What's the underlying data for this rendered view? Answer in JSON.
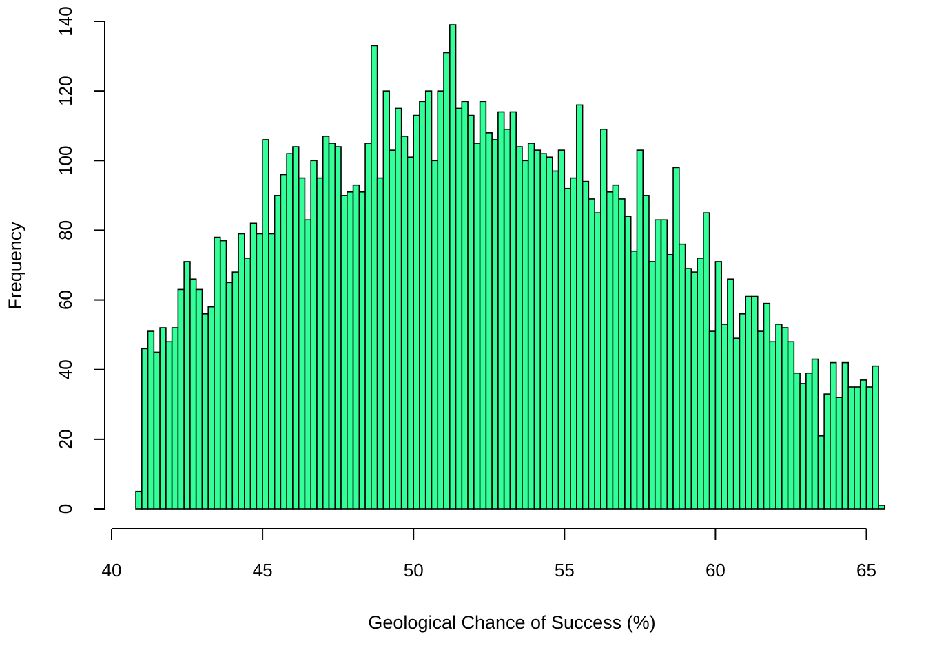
{
  "chart_data": {
    "type": "bar",
    "title": "",
    "xlabel": "Geological Chance of Success (%)",
    "ylabel": "Frequency",
    "xlim": [
      40,
      65.8
    ],
    "ylim": [
      0,
      140
    ],
    "x_ticks": [
      40,
      45,
      50,
      55,
      60,
      65
    ],
    "y_ticks": [
      0,
      20,
      40,
      60,
      80,
      100,
      120,
      140
    ],
    "x_tick_labels": [
      "40",
      "45",
      "50",
      "55",
      "60",
      "65"
    ],
    "y_tick_labels": [
      "0",
      "20",
      "40",
      "60",
      "80",
      "100",
      "120",
      "140"
    ],
    "bin_start": 40.8,
    "bin_width": 0.2,
    "bar_color": "#33ff99",
    "bar_edge_color": "#000000",
    "grid": false,
    "values": [
      5,
      46,
      51,
      45,
      52,
      48,
      52,
      63,
      71,
      66,
      63,
      56,
      58,
      78,
      77,
      65,
      68,
      79,
      72,
      82,
      79,
      106,
      79,
      90,
      96,
      102,
      104,
      95,
      83,
      100,
      95,
      107,
      105,
      104,
      90,
      91,
      93,
      91,
      105,
      133,
      95,
      120,
      103,
      115,
      107,
      101,
      113,
      117,
      120,
      100,
      120,
      131,
      139,
      115,
      117,
      113,
      105,
      117,
      108,
      106,
      114,
      109,
      114,
      104,
      100,
      105,
      103,
      102,
      101,
      97,
      103,
      92,
      95,
      116,
      94,
      89,
      85,
      109,
      91,
      93,
      89,
      84,
      74,
      103,
      90,
      71,
      83,
      83,
      73,
      98,
      76,
      69,
      68,
      72,
      85,
      51,
      71,
      53,
      66,
      49,
      56,
      61,
      61,
      51,
      59,
      48,
      53,
      52,
      48,
      39,
      36,
      39,
      43,
      21,
      33,
      42,
      32,
      42,
      35,
      35,
      37,
      35,
      41,
      1
    ]
  }
}
